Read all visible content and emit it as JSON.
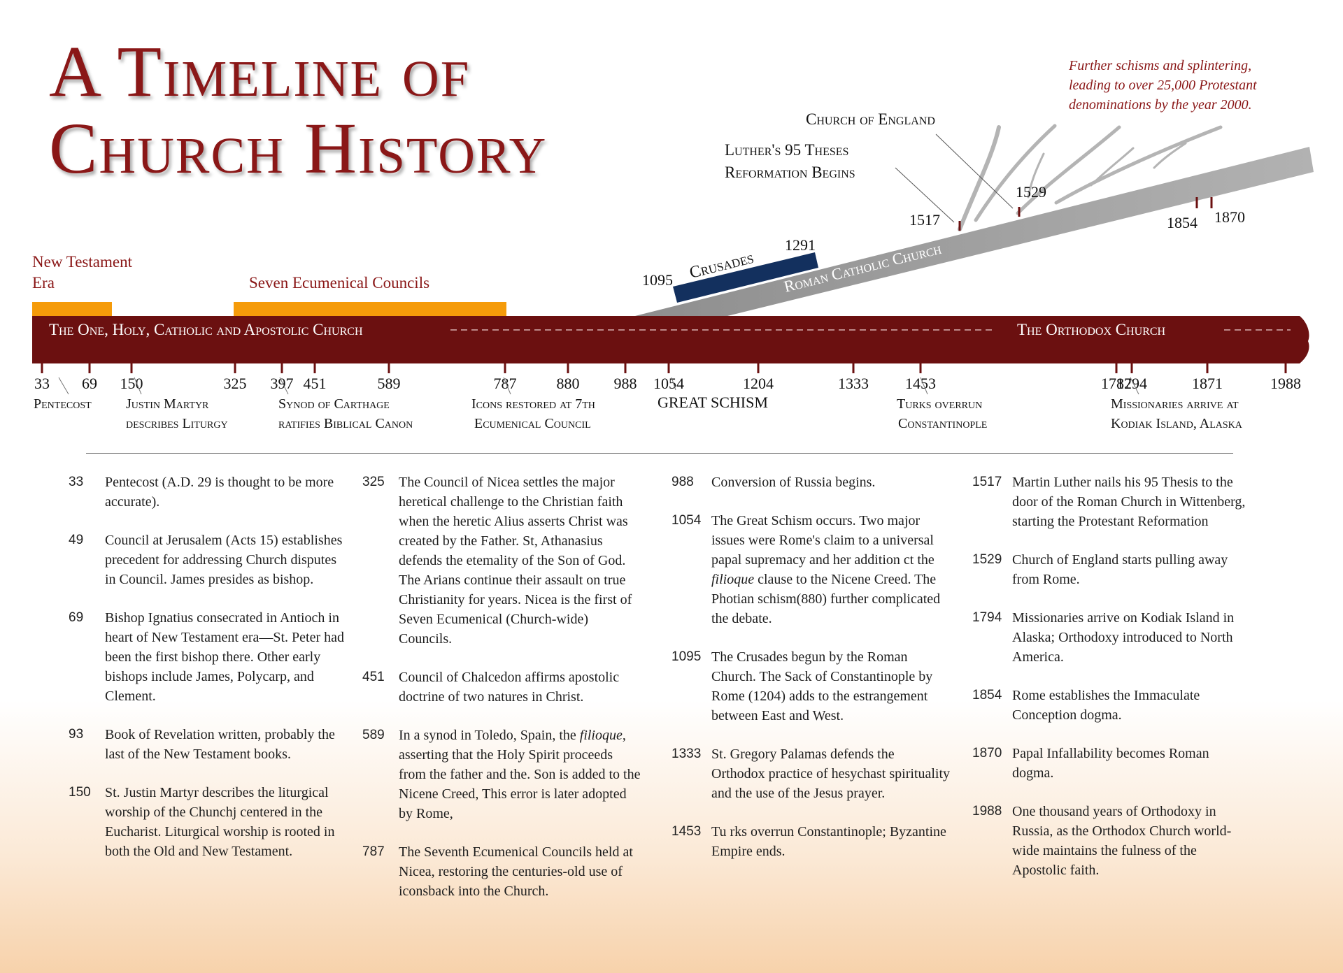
{
  "title": {
    "line1": "A Timeline of",
    "line2": "Church History"
  },
  "note": {
    "line1": "Further schisms and splintering,",
    "line2": "leading to over 25,000 Protestant",
    "line3": "denominations by the year 2000."
  },
  "colors": {
    "maroon": "#6b1010",
    "title_red": "#8a1717",
    "orange": "#f59b0a",
    "navy": "#13305e",
    "gray": "#9c9c9c"
  },
  "main_band": {
    "left_label": "The One, Holy, Catholic and Apostolic Church",
    "right_label": "The Orthodox Church"
  },
  "eras": {
    "new_testament_line1": "New Testament",
    "new_testament_line2": "Era",
    "councils": "Seven Ecumenical Councils"
  },
  "roman": {
    "band_label": "Roman Catholic Church",
    "crusades": "Crusades",
    "crusades_start": "1095",
    "crusades_end": "1291"
  },
  "labels": {
    "church_of_england": "Church of England",
    "luther_line1": "Luther's 95 Theses",
    "luther_line2": "Reformation Begins",
    "y1517": "1517",
    "y1529": "1529",
    "y1854": "1854",
    "y1870": "1870"
  },
  "ticks": [
    "33",
    "69",
    "150",
    "325",
    "397",
    "451",
    "589",
    "787",
    "880",
    "988",
    "1054",
    "1204",
    "1333",
    "1453",
    "1782",
    "1794",
    "1871",
    "1988"
  ],
  "events": {
    "pentecost": "Pentecost",
    "justin_line1": "Justin Martyr",
    "justin_line2": "describes Liturgy",
    "synod_line1": "Synod of Carthage",
    "synod_line2": "ratifies Biblical Canon",
    "icons_line1": "Icons restored at 7th",
    "icons_line2": "Ecumenical Council",
    "schism": "GREAT SCHISM",
    "turks_line1": "Turks overrun",
    "turks_line2": "Constantinople",
    "missionaries_line1": "Missionaries arrive at",
    "missionaries_line2": "Kodiak Island, Alaska"
  },
  "columns": [
    [
      {
        "year": "33",
        "text": "Pentecost (A.D. 29 is thought to be more accurate)."
      },
      {
        "year": "49",
        "text": "Council at Jerusalem (Acts 15) establishes precedent for addressing Church disputes in Council. James presides as bishop."
      },
      {
        "year": "69",
        "text": "Bishop Ignatius consecrated in Antioch in heart of New Testament era—St. Peter had been the first bishop there. Other early bishops include James, Polycarp, and Clement."
      },
      {
        "year": "93",
        "text": "Book of Revelation written, probably the last of the New Testament books."
      },
      {
        "year": "150",
        "text": "St. Justin Martyr describes the liturgical worship of the Chunchj centered in the Eucharist. Liturgical worship is rooted in both the Old and New Testament."
      }
    ],
    [
      {
        "year": "325",
        "text": "The Council of Nicea settles the major heretical challenge to the Christian faith when the heretic Alius asserts Christ was created by the Father. St, Athanasius defends the etemality of the Son of God. The Arians continue their assault on true Christianity for years. Nicea is the first of Seven Ecumenical (Church-wide) Councils."
      },
      {
        "year": "451",
        "text": "Council of Chalcedon affirms apostolic doctrine of two natures in Christ."
      },
      {
        "year": "589",
        "pre": "In a synod in Toledo, Spain, the ",
        "em": "filioque",
        "post": ", asserting that the Holy Spirit proceeds from the father and the. Son is added to the Nicene Creed, This error is later adopted by Rome,"
      },
      {
        "year": "787",
        "text": "The Seventh Ecumenical Councils held at Nicea, restoring the centuries-old use of iconsback into the Church."
      }
    ],
    [
      {
        "year": "988",
        "text": "Conversion of Russia begins."
      },
      {
        "year": "1054",
        "pre": "The Great Schism occurs. Two major issues were Rome's claim to a universal papal supremacy and her addition ct the ",
        "em": "filioque",
        "post": " clause to the Nicene Creed. The Photian schism(880) further complicated the debate."
      },
      {
        "year": "1095",
        "text": "The Crusades begun by the Roman Church. The Sack of Constantinople by Rome (1204) adds to the estrangement between East and West."
      },
      {
        "year": "1333",
        "text": "St. Gregory Palamas defends the Orthodox practice of hesychast spirituality and the use of the Jesus prayer."
      },
      {
        "year": "1453",
        "text": "Tu rks overrun Constantinople; Byzantine Empire ends."
      }
    ],
    [
      {
        "year": "1517",
        "text": "Martin Luther nails his 95 Thesis to the door of the Roman Church in Wittenberg, starting the Protestant Reformation"
      },
      {
        "year": "1529",
        "text": "Church of England starts pulling away from Rome."
      },
      {
        "year": "1794",
        "text": "Missionaries arrive on Kodiak Island in Alaska; Orthodoxy introduced to North America."
      },
      {
        "year": "1854",
        "text": "Rome establishes the Immaculate Conception dogma."
      },
      {
        "year": "1870",
        "text": "Papal Infallability becomes Roman dogma."
      },
      {
        "year": "1988",
        "text": "One thousand years of Orthodoxy in Russia, as the Orthodox Church world-wide maintains the fulness of the Apostolic faith."
      }
    ]
  ]
}
